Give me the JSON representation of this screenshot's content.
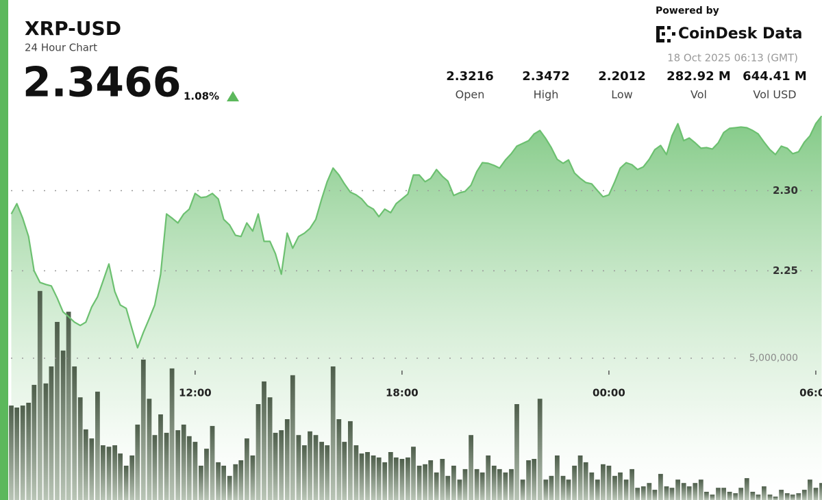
{
  "header": {
    "powered_by": "Powered by",
    "brand": "CoinDesk Data",
    "timestamp": "18 Oct 2025 06:13 (GMT)"
  },
  "chart_data": {
    "type": "line",
    "title": "XRP-USD",
    "subtitle": "24 Hour Chart",
    "price": 2.3466,
    "change": {
      "value": 1.08,
      "label": "1.08%"
    },
    "stats": [
      {
        "name": "Open",
        "value": 2.3216
      },
      {
        "name": "High",
        "value": 2.3472
      },
      {
        "name": "Low",
        "value": 2.2012
      },
      {
        "name": "Vol",
        "value": "282.92 M"
      },
      {
        "name": "Vol USD",
        "value": "644.41 M"
      }
    ],
    "x": [
      6.67,
      6.83,
      7,
      7.17,
      7.33,
      7.5,
      7.67,
      7.83,
      8,
      8.17,
      8.33,
      8.5,
      8.67,
      8.83,
      9,
      9.17,
      9.33,
      9.5,
      9.67,
      9.83,
      10,
      10.17,
      10.33,
      10.5,
      10.67,
      10.83,
      11,
      11.17,
      11.33,
      11.5,
      11.67,
      11.83,
      12,
      12.17,
      12.33,
      12.5,
      12.67,
      12.83,
      13,
      13.17,
      13.33,
      13.5,
      13.67,
      13.83,
      14,
      14.17,
      14.33,
      14.5,
      14.67,
      14.83,
      15,
      15.17,
      15.33,
      15.5,
      15.67,
      15.83,
      16,
      16.17,
      16.33,
      16.5,
      16.67,
      16.83,
      17,
      17.17,
      17.33,
      17.5,
      17.67,
      17.83,
      18,
      18.17,
      18.33,
      18.5,
      18.67,
      18.83,
      19,
      19.17,
      19.33,
      19.5,
      19.67,
      19.83,
      20,
      20.17,
      20.33,
      20.5,
      20.67,
      20.83,
      21,
      21.17,
      21.33,
      21.5,
      21.67,
      21.83,
      22,
      22.17,
      22.33,
      22.5,
      22.67,
      22.83,
      23,
      23.17,
      23.33,
      23.5,
      23.67,
      23.83,
      24,
      24.17,
      24.33,
      24.5,
      24.67,
      24.83,
      25,
      25.17,
      25.33,
      25.5,
      25.67,
      25.83,
      26,
      26.17,
      26.33,
      26.5,
      26.67,
      26.83,
      27,
      27.17,
      27.33,
      27.5,
      27.67,
      27.83,
      28,
      28.17,
      28.33,
      28.5,
      28.67,
      28.83,
      29,
      29.17,
      29.33,
      29.5,
      29.67,
      29.83,
      30,
      30.17
    ],
    "series": [
      {
        "color": "#6cc070",
        "values": [
          2.2855,
          2.2919,
          2.2829,
          2.2714,
          2.25,
          2.2428,
          2.2415,
          2.2406,
          2.233,
          2.2244,
          2.2214,
          2.218,
          2.2159,
          2.218,
          2.2274,
          2.2338,
          2.2436,
          2.2543,
          2.2372,
          2.2287,
          2.2266,
          2.2138,
          2.202,
          2.2116,
          2.2202,
          2.2287,
          2.2479,
          2.2855,
          2.2829,
          2.2799,
          2.2855,
          2.2885,
          2.2983,
          2.2957,
          2.2962,
          2.2983,
          2.2949,
          2.2821,
          2.2786,
          2.2722,
          2.2714,
          2.2799,
          2.2748,
          2.2855,
          2.2684,
          2.2684,
          2.2607,
          2.2479,
          2.2735,
          2.2641,
          2.2714,
          2.2735,
          2.2765,
          2.2821,
          2.2949,
          2.3056,
          2.3141,
          2.3098,
          2.3043,
          2.2991,
          2.2974,
          2.2949,
          2.2906,
          2.2885,
          2.2838,
          2.2885,
          2.2863,
          2.2919,
          2.2949,
          2.2979,
          2.3098,
          2.3098,
          2.3056,
          2.3077,
          2.3132,
          2.309,
          2.306,
          2.297,
          2.2987,
          2.2996,
          2.3034,
          2.312,
          2.3175,
          2.3171,
          2.3158,
          2.3141,
          2.3192,
          2.3231,
          2.3278,
          2.3295,
          2.3312,
          2.3354,
          2.3376,
          2.3325,
          2.3269,
          2.3196,
          2.3171,
          2.3192,
          2.3111,
          2.3077,
          2.3051,
          2.3043,
          2.3,
          2.2962,
          2.2974,
          2.3056,
          2.3141,
          2.3175,
          2.3162,
          2.3132,
          2.3149,
          2.3196,
          2.3256,
          2.3282,
          2.3226,
          2.3342,
          2.3418,
          2.3312,
          2.3329,
          2.3299,
          2.3265,
          2.3269,
          2.326,
          2.3299,
          2.3363,
          2.3389,
          2.3393,
          2.3397,
          2.3393,
          2.3376,
          2.3354,
          2.3303,
          2.3256,
          2.3226,
          2.3278,
          2.3265,
          2.3231,
          2.3243,
          2.3303,
          2.3342,
          2.3418,
          2.3466
        ]
      },
      {
        "type": "bar",
        "axis": "y2",
        "color": "#4e5e4b",
        "values": [
          3330000,
          3260000,
          3330000,
          3430000,
          4060000,
          7370000,
          4110000,
          4710000,
          6280000,
          5270000,
          6640000,
          4710000,
          3620000,
          2490000,
          2170000,
          3820000,
          1930000,
          1880000,
          1930000,
          1640000,
          1210000,
          1570000,
          2660000,
          4950000,
          3570000,
          2290000,
          3020000,
          2370000,
          4640000,
          2460000,
          2660000,
          2250000,
          2050000,
          1210000,
          1810000,
          2610000,
          1330000,
          1210000,
          850000,
          1260000,
          1400000,
          2170000,
          1570000,
          3380000,
          4180000,
          3620000,
          2370000,
          2460000,
          2850000,
          4400000,
          2290000,
          1930000,
          2420000,
          2290000,
          2050000,
          1930000,
          4710000,
          2850000,
          2050000,
          2780000,
          1930000,
          1640000,
          1690000,
          1570000,
          1500000,
          1330000,
          1690000,
          1500000,
          1450000,
          1500000,
          1880000,
          1210000,
          1260000,
          1400000,
          970000,
          1450000,
          850000,
          1210000,
          720000,
          1090000,
          2290000,
          1090000,
          970000,
          1570000,
          1210000,
          1090000,
          970000,
          1090000,
          3380000,
          720000,
          1400000,
          1450000,
          3570000,
          720000,
          850000,
          1570000,
          850000,
          720000,
          1210000,
          1570000,
          1330000,
          970000,
          720000,
          1260000,
          1210000,
          850000,
          970000,
          720000,
          1090000,
          430000,
          480000,
          600000,
          360000,
          920000,
          480000,
          430000,
          720000,
          600000,
          480000,
          600000,
          720000,
          290000,
          190000,
          430000,
          430000,
          290000,
          240000,
          430000,
          770000,
          290000,
          190000,
          480000,
          190000,
          120000,
          360000,
          240000,
          190000,
          240000,
          360000,
          720000,
          430000,
          600000
        ]
      }
    ],
    "xlim": [
      6.58,
      30.18
    ],
    "xticks": [
      {
        "value": 12,
        "label": "12:00"
      },
      {
        "value": 18,
        "label": "18:00"
      },
      {
        "value": 24,
        "label": "00:00"
      },
      {
        "value": 30,
        "label": "06:00"
      }
    ],
    "ylim": [
      2.107,
      2.419
    ],
    "yticks": [
      {
        "value": 2.25,
        "label": "2.25"
      },
      {
        "value": 2.3,
        "label": "2.30"
      }
    ],
    "y2lim": [
      0,
      17630000
    ],
    "y2ticks": [
      {
        "value": 5000000,
        "label": "5,000,000"
      }
    ],
    "grid": true
  }
}
